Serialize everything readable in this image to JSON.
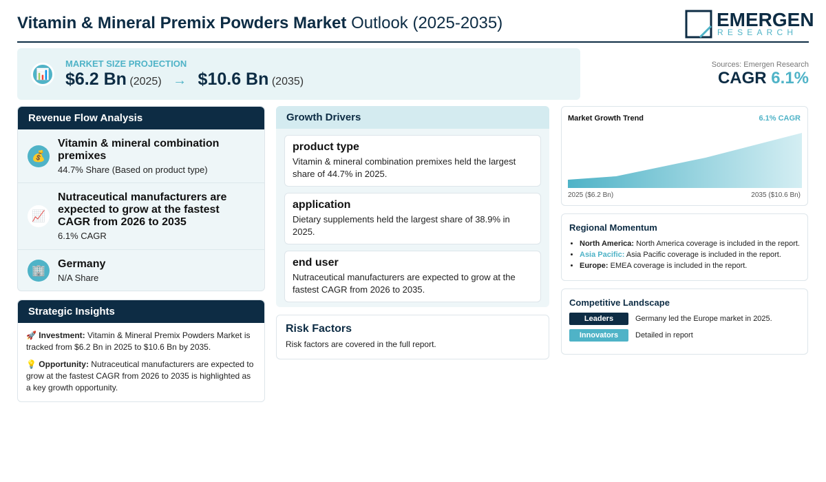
{
  "header": {
    "title_bold": "Vitamin & Mineral Premix Powders Market",
    "title_rest": "Outlook (2025-2035)",
    "logo_main": "EMERGEN",
    "logo_sub": "RESEARCH"
  },
  "projection": {
    "icon": "📊",
    "label": "MARKET SIZE PROJECTION",
    "start_value": "$6.2 Bn",
    "start_year": "(2025)",
    "arrow": "→",
    "end_value": "$10.6 Bn",
    "end_year": "(2035)"
  },
  "source": {
    "text": "Sources: Emergen Research",
    "cagr_label": "CAGR",
    "cagr_value": "6.1%"
  },
  "revenue_flow": {
    "title": "Revenue Flow Analysis",
    "items": [
      {
        "icon": "💰",
        "title": "Vitamin & mineral combination premixes",
        "detail": "44.7% Share (Based on product type)"
      },
      {
        "icon": "📈",
        "title": "Nutraceutical manufacturers are expected to grow at the fastest CAGR from 2026 to 2035",
        "detail": "6.1% CAGR"
      },
      {
        "icon": "🏢",
        "title": "Germany",
        "detail": "N/A Share"
      }
    ]
  },
  "strategic_insights": {
    "title": "Strategic Insights",
    "items": [
      {
        "icon": "🚀",
        "label": "Investment:",
        "text": "Vitamin & Mineral Premix Powders Market is tracked from $6.2 Bn in 2025 to $10.6 Bn by 2035."
      },
      {
        "icon": "💡",
        "label": "Opportunity:",
        "text": "Nutraceutical manufacturers are expected to grow at the fastest CAGR from 2026 to 2035 is highlighted as a key growth opportunity."
      }
    ]
  },
  "growth_drivers": {
    "title": "Growth Drivers",
    "items": [
      {
        "title": "product type",
        "text": "Vitamin & mineral combination premixes held the largest share of 44.7% in 2025."
      },
      {
        "title": "application",
        "text": "Dietary supplements held the largest share of 38.9% in 2025."
      },
      {
        "title": "end user",
        "text": "Nutraceutical manufacturers are expected to grow at the fastest CAGR from 2026 to 2035."
      }
    ]
  },
  "risk_factors": {
    "title": "Risk Factors",
    "text": "Risk factors are covered in the full report."
  },
  "market_trend": {
    "title": "Market Growth Trend",
    "cagr": "6.1% CAGR",
    "start_label": "2025 ($6.2 Bn)",
    "end_label": "2035 ($10.6 Bn)"
  },
  "regional_momentum": {
    "title": "Regional Momentum",
    "items": [
      {
        "region": "North America:",
        "text": "North America coverage is included in the report."
      },
      {
        "region": "Asia Pacific:",
        "text": "Asia Pacific coverage is included in the report."
      },
      {
        "region": "Europe:",
        "text": "EMEA coverage is included in the report."
      }
    ]
  },
  "competitive_landscape": {
    "title": "Competitive Landscape",
    "items": [
      {
        "badge": "Leaders",
        "text": "Germany led the Europe market in 2025."
      },
      {
        "badge": "Innovators",
        "text": "Detailed in report"
      }
    ]
  }
}
